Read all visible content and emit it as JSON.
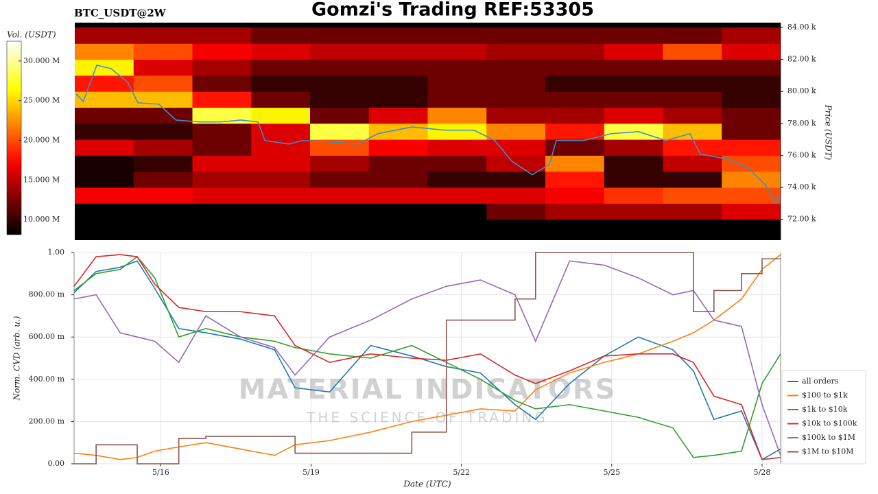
{
  "chart_data": [
    {
      "type": "heatmap",
      "title": "Gomzi's Trading REF:53305",
      "subtitle": "BTC_USDT@2W",
      "ylabel": "Price (USDT)",
      "xlim": [
        14.27,
        28.37
      ],
      "ylim": [
        70.7,
        84.3
      ],
      "yticks": [
        {
          "value": 72,
          "label": "72.00 k"
        },
        {
          "value": 74,
          "label": "74.00 k"
        },
        {
          "value": 76,
          "label": "76.00 k"
        },
        {
          "value": 78,
          "label": "78.00 k"
        },
        {
          "value": 80,
          "label": "80.00 k"
        },
        {
          "value": 82,
          "label": "82.00 k"
        },
        {
          "value": 84,
          "label": "84.00 k"
        }
      ],
      "colormap": "hot",
      "x_bins": [
        14.27,
        15.445,
        16.62,
        17.795,
        18.97,
        20.145,
        21.32,
        22.495,
        23.67,
        24.845,
        26.02,
        27.195,
        28.37
      ],
      "y_bins": [
        71,
        72,
        73,
        74,
        75,
        76,
        77,
        78,
        79,
        80,
        81,
        82,
        83,
        84
      ],
      "values": [
        [
          8,
          8,
          8,
          8,
          8,
          8,
          8,
          8,
          8,
          8,
          8,
          8
        ],
        [
          8,
          8,
          8,
          8,
          8,
          8,
          8,
          12,
          14,
          14,
          14,
          16
        ],
        [
          17,
          17,
          16,
          16,
          16,
          16,
          16,
          16,
          17,
          19,
          20,
          20
        ],
        [
          9,
          12,
          14,
          14,
          12,
          12,
          10,
          10,
          18,
          10,
          10,
          22
        ],
        [
          9,
          10,
          16,
          16,
          14,
          12,
          12,
          15,
          22,
          10,
          15,
          20
        ],
        [
          16,
          14,
          12,
          16,
          20,
          17,
          16,
          16,
          12,
          14,
          18,
          18
        ],
        [
          10,
          10,
          12,
          16,
          28,
          24,
          26,
          22,
          18,
          28,
          24,
          12
        ],
        [
          12,
          12,
          28,
          26,
          12,
          16,
          22,
          14,
          14,
          16,
          14,
          12
        ],
        [
          24,
          24,
          18,
          12,
          10,
          10,
          12,
          12,
          12,
          12,
          12,
          10
        ],
        [
          18,
          20,
          12,
          10,
          10,
          10,
          12,
          12,
          10,
          10,
          10,
          10
        ],
        [
          26,
          16,
          14,
          12,
          12,
          12,
          12,
          12,
          12,
          12,
          12,
          12
        ],
        [
          22,
          20,
          17,
          16,
          15,
          15,
          15,
          14,
          14,
          16,
          20,
          16
        ],
        [
          14,
          14,
          14,
          12,
          12,
          12,
          12,
          12,
          12,
          12,
          12,
          14
        ]
      ],
      "colorbar": {
        "label": "Vol. (USDT)",
        "lim": [
          8.1,
          32.5
        ],
        "ticks": [
          {
            "value": 10,
            "label": "10.000 M"
          },
          {
            "value": 15,
            "label": "15.000 M"
          },
          {
            "value": 20,
            "label": "20.000 M"
          },
          {
            "value": 25,
            "label": "25.000 M"
          },
          {
            "value": 30,
            "label": "30.000 M"
          }
        ]
      },
      "line": {
        "color": "#3a8fd0",
        "x": [
          14.3,
          14.44,
          14.71,
          14.99,
          15.33,
          15.53,
          15.95,
          16.29,
          16.77,
          17.18,
          17.59,
          17.93,
          18.07,
          18.55,
          18.82,
          19.37,
          19.92,
          20.33,
          21.01,
          21.42,
          21.7,
          22.25,
          22.66,
          23.0,
          23.41,
          23.75,
          23.89,
          24.44,
          24.99,
          25.53,
          26.08,
          26.56,
          26.77,
          27.32,
          27.73,
          28.07,
          28.27,
          28.37
        ],
        "values": [
          79.84,
          79.37,
          81.64,
          81.43,
          80.57,
          79.29,
          79.2,
          78.21,
          78.09,
          78.09,
          78.21,
          78.09,
          76.93,
          76.71,
          76.93,
          76.84,
          76.71,
          77.36,
          77.78,
          77.65,
          77.57,
          77.57,
          76.93,
          75.64,
          74.79,
          75.43,
          76.93,
          76.93,
          77.36,
          77.48,
          76.93,
          77.36,
          76.07,
          75.77,
          75.21,
          74.14,
          73.07,
          73.5
        ]
      }
    },
    {
      "type": "line",
      "xlabel": "Date (UTC)",
      "ylabel": "Norm. CVD (arb. u.)",
      "xlim": [
        14.27,
        28.37
      ],
      "ylim": [
        0,
        1
      ],
      "xticks": [
        {
          "value": 16,
          "label": "5/16"
        },
        {
          "value": 19,
          "label": "5/19"
        },
        {
          "value": 22,
          "label": "5/22"
        },
        {
          "value": 25,
          "label": "5/25"
        },
        {
          "value": 28,
          "label": "5/28"
        }
      ],
      "yticks": [
        {
          "value": 0,
          "label": "0.00"
        },
        {
          "value": 0.2,
          "label": "200.00 m"
        },
        {
          "value": 0.4,
          "label": "400.00 m"
        },
        {
          "value": 0.6,
          "label": "600.00 m"
        },
        {
          "value": 0.8,
          "label": "800.00 m"
        },
        {
          "value": 1,
          "label": "1.00"
        }
      ],
      "grid": true,
      "legend": "right",
      "watermark": [
        "MATERIAL INDICATORS",
        "THE SCIENCE OF TRADING"
      ],
      "x": [
        14.27,
        14.71,
        15.19,
        15.53,
        15.88,
        16.36,
        16.9,
        17.59,
        18.27,
        18.68,
        19.37,
        20.19,
        21.01,
        21.7,
        22.38,
        23.07,
        23.48,
        24.16,
        24.85,
        25.53,
        26.22,
        26.63,
        27.04,
        27.59,
        28.0,
        28.37
      ],
      "series": [
        {
          "name": "all orders",
          "color": "#1f77b4",
          "values": [
            0.81,
            0.91,
            0.93,
            0.96,
            0.83,
            0.64,
            0.62,
            0.59,
            0.54,
            0.36,
            0.34,
            0.56,
            0.51,
            0.46,
            0.43,
            0.28,
            0.21,
            0.38,
            0.51,
            0.6,
            0.54,
            0.44,
            0.21,
            0.25,
            0.02,
            0.07
          ]
        },
        {
          "name": "$100 to $1k",
          "color": "#ff7f0e",
          "values": [
            0.05,
            0.04,
            0.02,
            0.03,
            0.06,
            0.08,
            0.1,
            0.07,
            0.04,
            0.09,
            0.11,
            0.15,
            0.2,
            0.23,
            0.26,
            0.25,
            0.35,
            0.43,
            0.48,
            0.52,
            0.58,
            0.62,
            0.68,
            0.78,
            0.92,
            0.99
          ]
        },
        {
          "name": "$1k to $10k",
          "color": "#2ca02c",
          "values": [
            0.82,
            0.9,
            0.92,
            0.98,
            0.88,
            0.6,
            0.64,
            0.6,
            0.58,
            0.55,
            0.52,
            0.5,
            0.56,
            0.48,
            0.4,
            0.3,
            0.26,
            0.28,
            0.25,
            0.22,
            0.17,
            0.03,
            0.04,
            0.06,
            0.38,
            0.52
          ]
        },
        {
          "name": "$10k to $100k",
          "color": "#d62728",
          "values": [
            0.84,
            0.98,
            0.99,
            0.98,
            0.85,
            0.74,
            0.72,
            0.72,
            0.7,
            0.56,
            0.48,
            0.52,
            0.5,
            0.49,
            0.52,
            0.42,
            0.38,
            0.44,
            0.51,
            0.52,
            0.52,
            0.48,
            0.32,
            0.28,
            0.02,
            0.03
          ]
        },
        {
          "name": "$100k to $1M",
          "color": "#9467bd",
          "values": [
            0.78,
            0.8,
            0.62,
            0.6,
            0.58,
            0.48,
            0.7,
            0.6,
            0.55,
            0.42,
            0.6,
            0.68,
            0.78,
            0.84,
            0.87,
            0.8,
            0.58,
            0.96,
            0.94,
            0.88,
            0.8,
            0.82,
            0.68,
            0.65,
            0.28,
            0.04
          ]
        },
        {
          "name": "$1M to $10M",
          "color": "#8c564b",
          "step": true,
          "values": [
            0,
            0.09,
            0.09,
            0,
            0,
            0.12,
            0.13,
            0.13,
            0.13,
            0.05,
            0.05,
            0.05,
            0.15,
            0.68,
            0.68,
            0.78,
            1,
            1,
            1,
            1,
            1,
            0.72,
            0.82,
            0.9,
            0.97,
            0.97
          ]
        }
      ]
    }
  ]
}
